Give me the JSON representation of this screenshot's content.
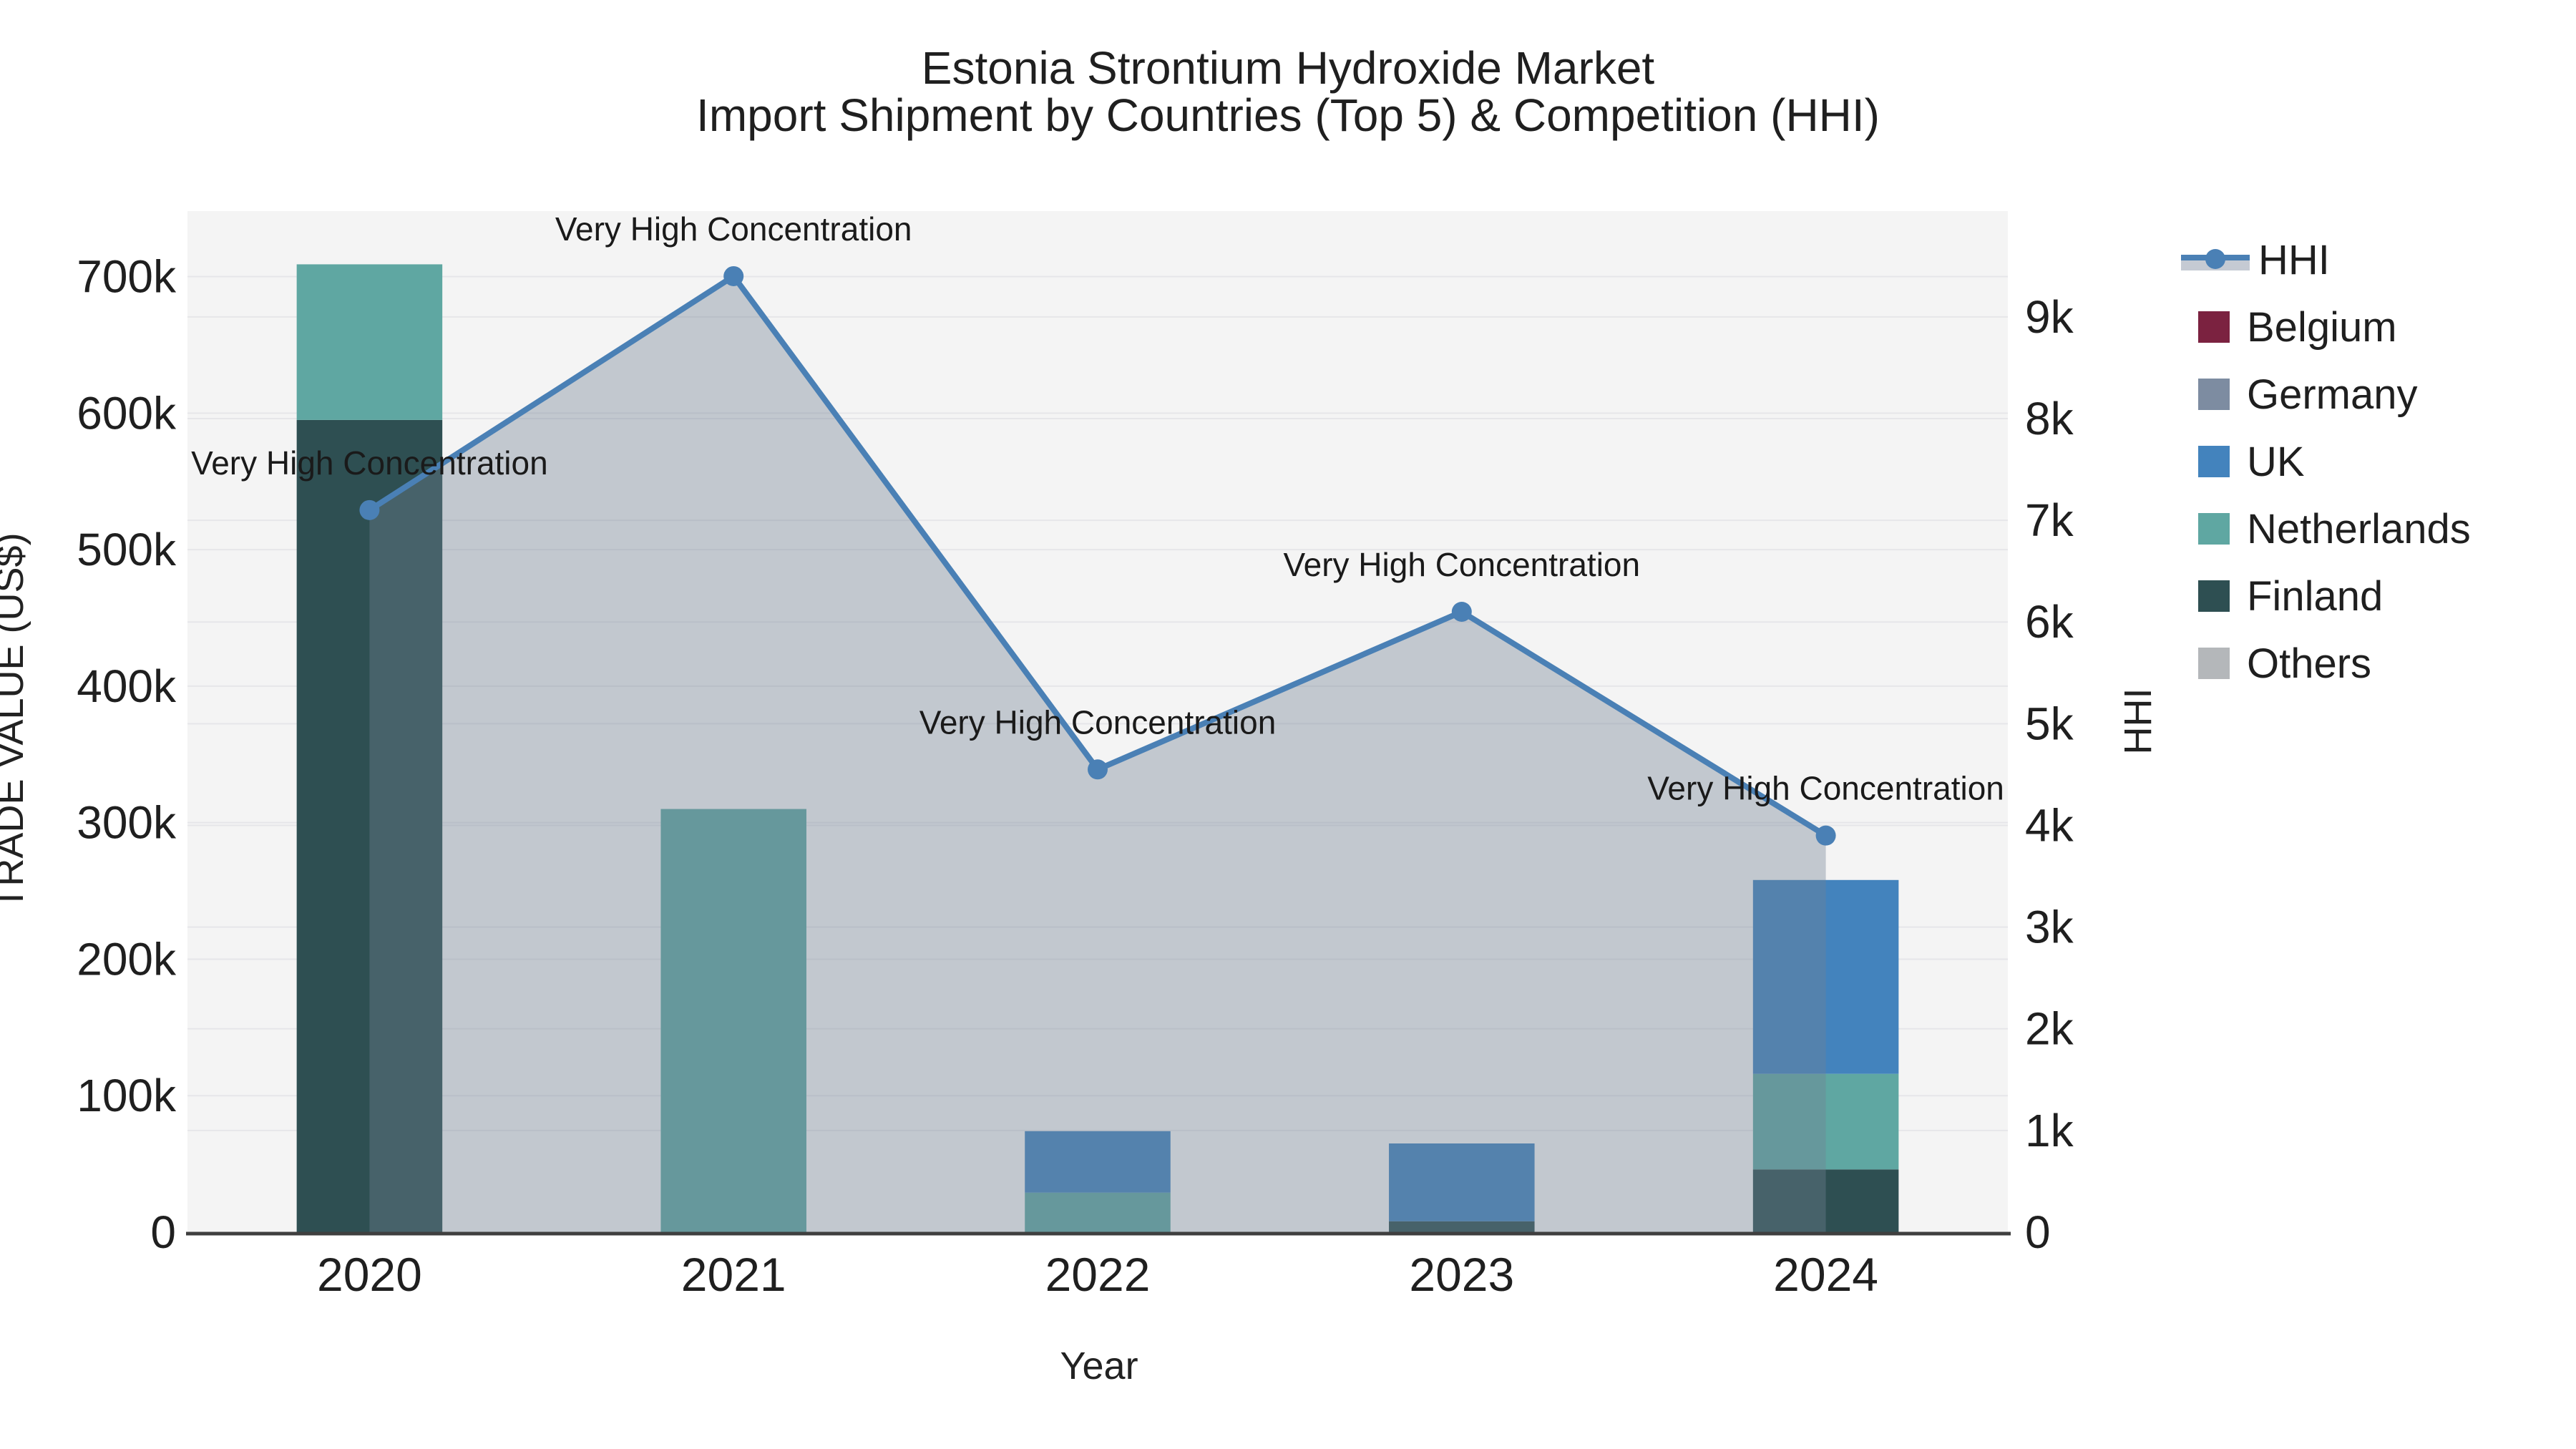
{
  "title": {
    "line1": "Estonia Strontium Hydroxide Market",
    "line2": "Import Shipment by Countries (Top 5) & Competition (HHI)"
  },
  "axes": {
    "x_label": "Year",
    "y_left_label": "TRADE VALUE (US$)",
    "y_right_label": "HHI"
  },
  "colors": {
    "hhi_line": "#4a80b5",
    "hhi_area": "rgba(114,128,148,0.38)",
    "belgium": "#7b2240",
    "germany": "#7d8ca1",
    "uk": "#4383bd",
    "netherlands": "#5fa7a2",
    "finland": "#2e4f52",
    "others": "#b4b7ba",
    "plot_bg": "#f4f4f4",
    "grid": "#e6e6e9",
    "axis_line": "#3f3f3f",
    "tick_text": "#1f1f1f",
    "annotation_text": "#1a1a1a"
  },
  "legend": [
    {
      "label": "HHI",
      "type": "line",
      "color": "#4a80b5",
      "band": "#c5cad3"
    },
    {
      "label": "Belgium",
      "type": "swatch",
      "color": "#7b2240"
    },
    {
      "label": "Germany",
      "type": "swatch",
      "color": "#7d8ca1"
    },
    {
      "label": "UK",
      "type": "swatch",
      "color": "#4383bd"
    },
    {
      "label": "Netherlands",
      "type": "swatch",
      "color": "#5fa7a2"
    },
    {
      "label": "Finland",
      "type": "swatch",
      "color": "#2e4f52"
    },
    {
      "label": "Others",
      "type": "swatch",
      "color": "#b4b7ba"
    }
  ],
  "chart_data": {
    "type": "bar+line",
    "title": "Estonia Strontium Hydroxide Market — Import Shipment by Countries (Top 5) & Competition (HHI)",
    "categories": [
      "2020",
      "2021",
      "2022",
      "2023",
      "2024"
    ],
    "bar_series": [
      {
        "name": "Belgium",
        "color": "#7b2240",
        "values": [
          0,
          0,
          0,
          0,
          0
        ]
      },
      {
        "name": "Germany",
        "color": "#7d8ca1",
        "values": [
          0,
          0,
          0,
          0,
          0
        ]
      },
      {
        "name": "UK",
        "color": "#4383bd",
        "values": [
          0,
          0,
          45000,
          57000,
          142000
        ]
      },
      {
        "name": "Netherlands",
        "color": "#5fa7a2",
        "values": [
          114000,
          310000,
          29000,
          0,
          70000
        ]
      },
      {
        "name": "Finland",
        "color": "#2e4f52",
        "values": [
          595000,
          0,
          0,
          8000,
          46000
        ]
      },
      {
        "name": "Others",
        "color": "#b4b7ba",
        "values": [
          0,
          0,
          0,
          0,
          0
        ]
      }
    ],
    "stack_order": [
      "Finland",
      "Netherlands",
      "UK",
      "Germany",
      "Belgium",
      "Others"
    ],
    "line_series": {
      "name": "HHI",
      "axis": "right",
      "color": "#4a80b5",
      "values": [
        7100,
        9400,
        4550,
        6100,
        3900
      ]
    },
    "annotation_text": "Very High Concentration",
    "y_left": {
      "label": "TRADE VALUE (US$)",
      "min": 0,
      "max": 748000,
      "ticks": [
        {
          "label": "0",
          "value": 0
        },
        {
          "label": "100k",
          "value": 100000
        },
        {
          "label": "200k",
          "value": 200000
        },
        {
          "label": "300k",
          "value": 300000
        },
        {
          "label": "400k",
          "value": 400000
        },
        {
          "label": "500k",
          "value": 500000
        },
        {
          "label": "600k",
          "value": 600000
        },
        {
          "label": "700k",
          "value": 700000
        }
      ]
    },
    "y_right": {
      "label": "HHI",
      "min": 0,
      "max": 10040,
      "ticks": [
        {
          "label": "0",
          "value": 0
        },
        {
          "label": "1k",
          "value": 1000
        },
        {
          "label": "2k",
          "value": 2000
        },
        {
          "label": "3k",
          "value": 3000
        },
        {
          "label": "4k",
          "value": 4000
        },
        {
          "label": "5k",
          "value": 5000
        },
        {
          "label": "6k",
          "value": 6000
        },
        {
          "label": "7k",
          "value": 7000
        },
        {
          "label": "8k",
          "value": 8000
        },
        {
          "label": "9k",
          "value": 9000
        }
      ]
    },
    "grid": true,
    "legend_position": "right",
    "bar_width_fraction": 0.4
  }
}
